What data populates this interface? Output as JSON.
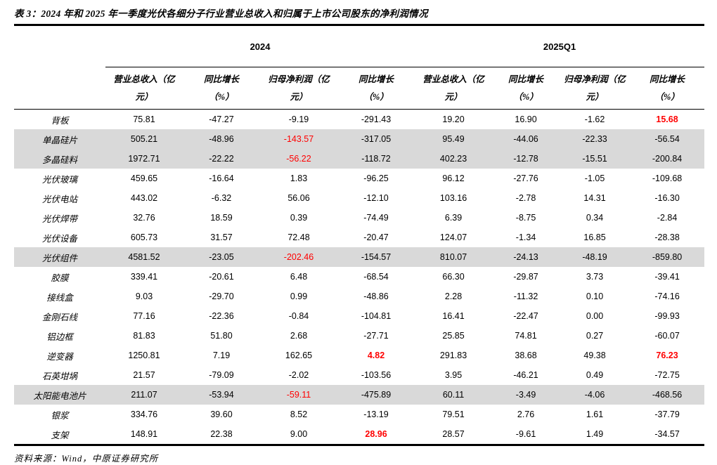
{
  "table": {
    "title": "表 3：2024 年和 2025 年一季度光伏各细分子行业营业总收入和归属于上市公司股东的净利润情况",
    "groups": [
      {
        "label": "2024"
      },
      {
        "label": "2025Q1"
      }
    ],
    "column_headers": [
      {
        "line1": "营业总收入（亿",
        "line2": "元）"
      },
      {
        "line1": "同比增长",
        "line2": "（%）"
      },
      {
        "line1": "归母净利润（亿",
        "line2": "元）"
      },
      {
        "line1": "同比增长",
        "line2": "（%）"
      },
      {
        "line1": "营业总收入（亿",
        "line2": "元）"
      },
      {
        "line1": "同比增长",
        "line2": "（%）"
      },
      {
        "line1": "归母净利润（亿",
        "line2": "元）"
      },
      {
        "line1": "同比增长",
        "line2": "（%）"
      }
    ],
    "rows": [
      {
        "label": "背板",
        "values": [
          "75.81",
          "-47.27",
          "-9.19",
          "-291.43",
          "19.20",
          "16.90",
          "-1.62",
          "15.68"
        ],
        "shaded": false,
        "styles": {
          "7": "red-bold"
        }
      },
      {
        "label": "单晶硅片",
        "values": [
          "505.21",
          "-48.96",
          "-143.57",
          "-317.05",
          "95.49",
          "-44.06",
          "-22.33",
          "-56.54"
        ],
        "shaded": true,
        "styles": {
          "2": "red"
        }
      },
      {
        "label": "多晶硅料",
        "values": [
          "1972.71",
          "-22.22",
          "-56.22",
          "-118.72",
          "402.23",
          "-12.78",
          "-15.51",
          "-200.84"
        ],
        "shaded": true,
        "styles": {
          "2": "red"
        }
      },
      {
        "label": "光伏玻璃",
        "values": [
          "459.65",
          "-16.64",
          "1.83",
          "-96.25",
          "96.12",
          "-27.76",
          "-1.05",
          "-109.68"
        ],
        "shaded": false,
        "styles": {}
      },
      {
        "label": "光伏电站",
        "values": [
          "443.02",
          "-6.32",
          "56.06",
          "-12.10",
          "103.16",
          "-2.78",
          "14.31",
          "-16.30"
        ],
        "shaded": false,
        "styles": {}
      },
      {
        "label": "光伏焊带",
        "values": [
          "32.76",
          "18.59",
          "0.39",
          "-74.49",
          "6.39",
          "-8.75",
          "0.34",
          "-2.84"
        ],
        "shaded": false,
        "styles": {}
      },
      {
        "label": "光伏设备",
        "values": [
          "605.73",
          "31.57",
          "72.48",
          "-20.47",
          "124.07",
          "-1.34",
          "16.85",
          "-28.38"
        ],
        "shaded": false,
        "styles": {}
      },
      {
        "label": "光伏组件",
        "values": [
          "4581.52",
          "-23.05",
          "-202.46",
          "-154.57",
          "810.07",
          "-24.13",
          "-48.19",
          "-859.80"
        ],
        "shaded": true,
        "styles": {
          "2": "red"
        }
      },
      {
        "label": "胶膜",
        "values": [
          "339.41",
          "-20.61",
          "6.48",
          "-68.54",
          "66.30",
          "-29.87",
          "3.73",
          "-39.41"
        ],
        "shaded": false,
        "styles": {}
      },
      {
        "label": "接线盒",
        "values": [
          "9.03",
          "-29.70",
          "0.99",
          "-48.86",
          "2.28",
          "-11.32",
          "0.10",
          "-74.16"
        ],
        "shaded": false,
        "styles": {}
      },
      {
        "label": "金刚石线",
        "values": [
          "77.16",
          "-22.36",
          "-0.84",
          "-104.81",
          "16.41",
          "-22.47",
          "0.00",
          "-99.93"
        ],
        "shaded": false,
        "styles": {}
      },
      {
        "label": "铝边框",
        "values": [
          "81.83",
          "51.80",
          "2.68",
          "-27.71",
          "25.85",
          "74.81",
          "0.27",
          "-60.07"
        ],
        "shaded": false,
        "styles": {}
      },
      {
        "label": "逆变器",
        "values": [
          "1250.81",
          "7.19",
          "162.65",
          "4.82",
          "291.83",
          "38.68",
          "49.38",
          "76.23"
        ],
        "shaded": false,
        "styles": {
          "3": "red-bold",
          "7": "red-bold"
        }
      },
      {
        "label": "石英坩埚",
        "values": [
          "21.57",
          "-79.09",
          "-2.02",
          "-103.56",
          "3.95",
          "-46.21",
          "0.49",
          "-72.75"
        ],
        "shaded": false,
        "styles": {}
      },
      {
        "label": "太阳能电池片",
        "values": [
          "211.07",
          "-53.94",
          "-59.11",
          "-475.89",
          "60.11",
          "-3.49",
          "-4.06",
          "-468.56"
        ],
        "shaded": true,
        "styles": {
          "2": "red"
        }
      },
      {
        "label": "银浆",
        "values": [
          "334.76",
          "39.60",
          "8.52",
          "-13.19",
          "79.51",
          "2.76",
          "1.61",
          "-37.79"
        ],
        "shaded": false,
        "styles": {}
      },
      {
        "label": "支架",
        "values": [
          "148.91",
          "22.38",
          "9.00",
          "28.96",
          "28.57",
          "-9.61",
          "1.49",
          "-34.57"
        ],
        "shaded": false,
        "styles": {
          "3": "red-bold"
        }
      }
    ]
  },
  "footer": {
    "source": "资料来源：Wind，中原证券研究所"
  },
  "colors": {
    "highlight_red": "#ff0000",
    "row_shade": "#d9d9d9",
    "rule_black": "#000000"
  }
}
